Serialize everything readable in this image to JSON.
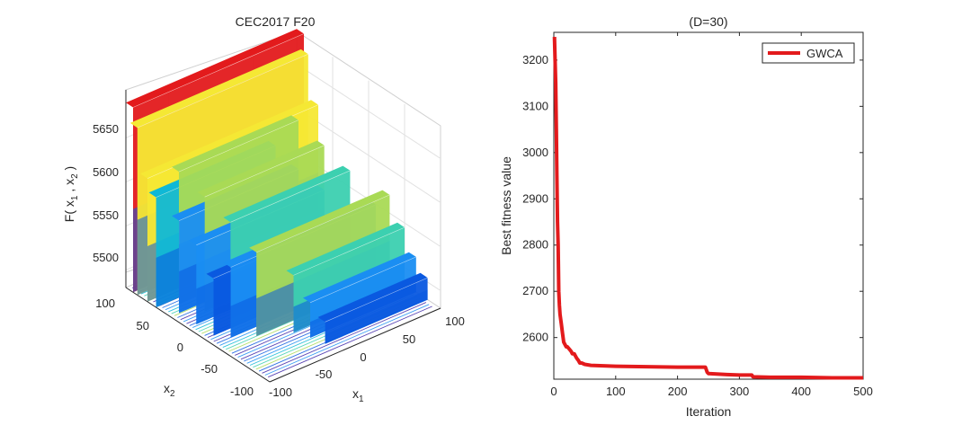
{
  "left_chart": {
    "title": "CEC2017 F20",
    "zlabel": "F( x",
    "zlabel_sub1": "1",
    "zlabel_mid": " , x",
    "zlabel_sub2": "2",
    "zlabel_end": " )",
    "x1label": "x",
    "x1label_sub": "1",
    "x2label": "x",
    "x2label_sub": "2",
    "z_ticks": [
      "5650",
      "5600",
      "5550",
      "5500"
    ],
    "x1_ticks": [
      "-100",
      "-50",
      "0",
      "50",
      "100"
    ],
    "x2_ticks": [
      "100",
      "50",
      "0",
      "-50",
      "-100"
    ]
  },
  "chart_data": [
    {
      "type": "surface",
      "title": "CEC2017 F20",
      "x_range": [
        -100,
        100
      ],
      "y_range": [
        -100,
        100
      ],
      "z_ticks": [
        5500,
        5550,
        5600,
        5650
      ],
      "colormap": "parula",
      "colors": [
        "#3e26a8",
        "#0a59e0",
        "#1a8ef2",
        "#0fb8d6",
        "#3cd0b0",
        "#a9da55",
        "#f5e834",
        "#e31a1c"
      ]
    },
    {
      "type": "line",
      "title": "(D=30)",
      "xlabel": "Iteration",
      "ylabel": "Best fitness value",
      "xlim": [
        0,
        500
      ],
      "ylim": [
        2510,
        3260
      ],
      "x_ticks": [
        0,
        100,
        200,
        300,
        400,
        500
      ],
      "y_ticks": [
        2600,
        2700,
        2800,
        2900,
        3000,
        3100,
        3200
      ],
      "legend_position": "top-right",
      "series": [
        {
          "name": "GWCA",
          "color": "#e31a1c",
          "x": [
            1,
            2,
            3,
            4,
            5,
            6,
            7,
            8,
            9,
            10,
            12,
            14,
            16,
            18,
            20,
            22,
            25,
            28,
            30,
            33,
            35,
            37,
            40,
            42,
            45,
            50,
            60,
            80,
            100,
            150,
            200,
            245,
            248,
            250,
            280,
            300,
            320,
            322,
            350,
            400,
            450,
            500
          ],
          "y": [
            3250,
            3200,
            3150,
            3050,
            2950,
            2850,
            2800,
            2700,
            2670,
            2650,
            2630,
            2610,
            2590,
            2585,
            2580,
            2580,
            2575,
            2570,
            2565,
            2565,
            2560,
            2555,
            2550,
            2545,
            2545,
            2542,
            2540,
            2539,
            2538,
            2537,
            2536,
            2536,
            2525,
            2522,
            2520,
            2519,
            2519,
            2515,
            2514,
            2514,
            2513,
            2513
          ]
        }
      ]
    }
  ]
}
